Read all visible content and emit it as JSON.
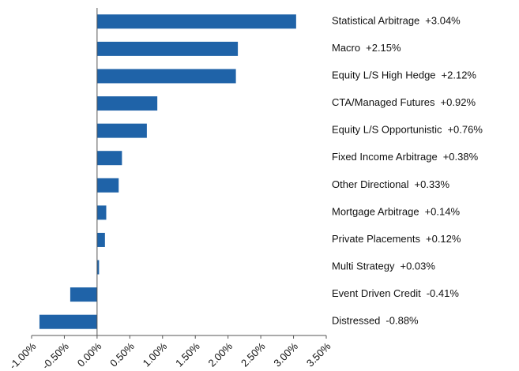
{
  "chart_data": {
    "type": "bar",
    "orientation": "horizontal",
    "categories": [
      "Statistical Arbitrage",
      "Macro",
      "Equity L/S High Hedge",
      "CTA/Managed Futures",
      "Equity L/S Opportunistic",
      "Fixed Income Arbitrage",
      "Other Directional",
      "Mortgage Arbitrage",
      "Private Placements",
      "Multi Strategy",
      "Event Driven Credit",
      "Distressed"
    ],
    "values": [
      3.04,
      2.15,
      2.12,
      0.92,
      0.76,
      0.38,
      0.33,
      0.14,
      0.12,
      0.03,
      -0.41,
      -0.88
    ],
    "value_labels": [
      "+3.04%",
      "+2.15%",
      "+2.12%",
      "+0.92%",
      "+0.76%",
      "+0.38%",
      "+0.33%",
      "+0.14%",
      "+0.12%",
      "+0.03%",
      "-0.41%",
      "-0.88%"
    ],
    "color": "#1f63a8",
    "xlim": [
      -1,
      3.5
    ],
    "xticks": [
      {
        "value": -1,
        "label": "-1.00%"
      },
      {
        "value": -0.5,
        "label": "-0.50%"
      },
      {
        "value": 0,
        "label": "0.00%"
      },
      {
        "value": 0.5,
        "label": "0.50%"
      },
      {
        "value": 1,
        "label": "1.00%"
      },
      {
        "value": 1.5,
        "label": "1.50%"
      },
      {
        "value": 2,
        "label": "2.00%"
      },
      {
        "value": 2.5,
        "label": "2.50%"
      },
      {
        "value": 3,
        "label": "3.00%"
      },
      {
        "value": 3.5,
        "label": "3.50%"
      }
    ],
    "grid": false
  }
}
